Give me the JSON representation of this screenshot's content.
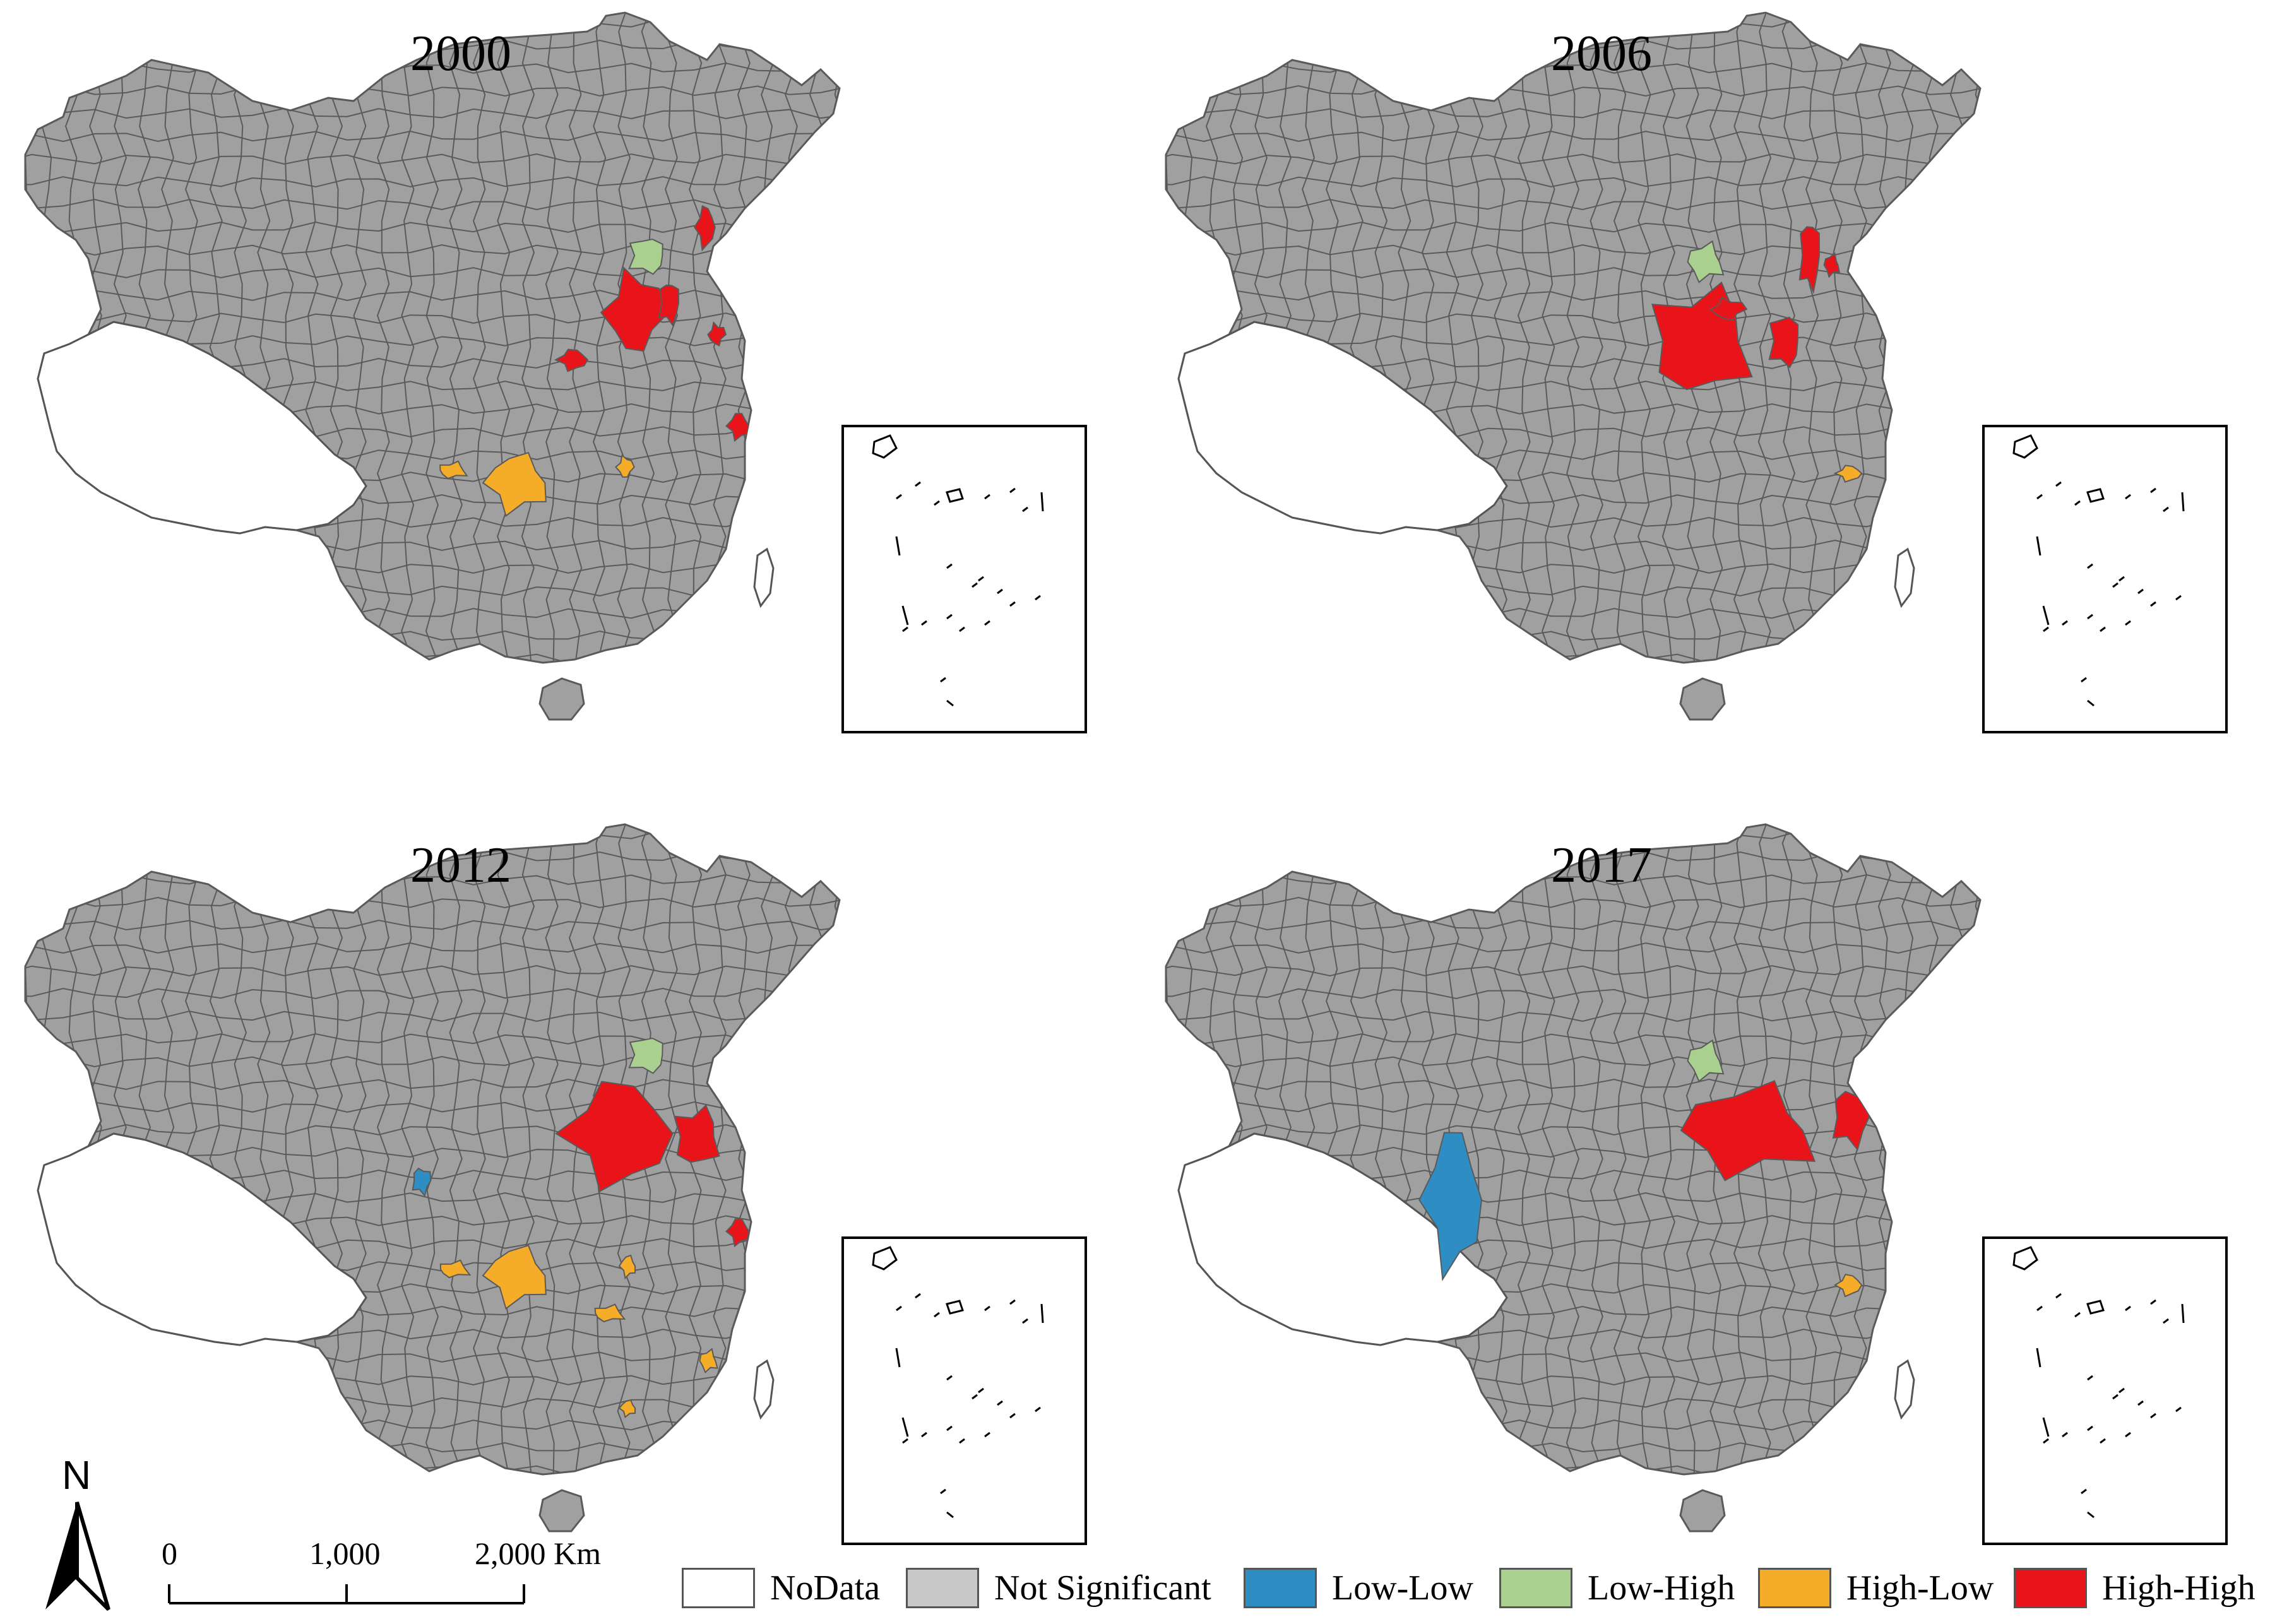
{
  "panels": [
    {
      "year": "2000"
    },
    {
      "year": "2006"
    },
    {
      "year": "2012"
    },
    {
      "year": "2017"
    }
  ],
  "legend": [
    {
      "label": "NoData",
      "color": "#ffffff"
    },
    {
      "label": "Not Significant",
      "color": "#c8c8c8"
    },
    {
      "label": "Low-Low",
      "color": "#2e8ec4"
    },
    {
      "label": "Low-High",
      "color": "#a9d08e"
    },
    {
      "label": "High-Low",
      "color": "#f5ad29"
    },
    {
      "label": "High-High",
      "color": "#e8141a"
    }
  ],
  "scale": {
    "ticks": [
      "0",
      "1,000",
      "2,000 Km"
    ]
  },
  "north_label": "N",
  "colors": {
    "land": "#a0a0a0",
    "border": "#5a5a5a"
  }
}
